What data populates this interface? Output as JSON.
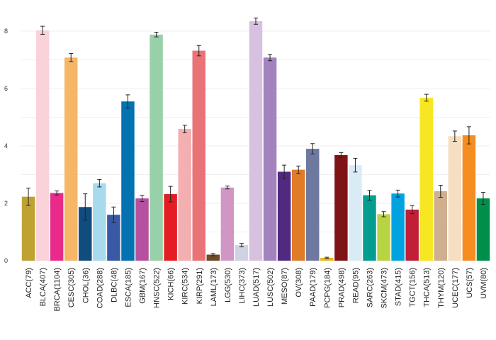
{
  "chart_data": {
    "type": "bar",
    "title": "",
    "xlabel": "",
    "ylabel": "",
    "ylim": [
      0,
      8.5
    ],
    "yticks": [
      0,
      2,
      4,
      6,
      8
    ],
    "grid": true,
    "legend": "none",
    "categories": [
      "ACC(79)",
      "BLCA(407)",
      "BRCA(1104)",
      "CESC(305)",
      "CHOL(36)",
      "COAD(288)",
      "DLBC(48)",
      "ESCA(185)",
      "GBM(167)",
      "HNSC(522)",
      "KICH(66)",
      "KIRC(534)",
      "KIRP(291)",
      "LAML(173)",
      "LGG(530)",
      "LIHC(373)",
      "LUAD(517)",
      "LUSC(502)",
      "MESO(87)",
      "OV(308)",
      "PAAD(179)",
      "PCPG(184)",
      "PRAD(498)",
      "READ(95)",
      "SARC(263)",
      "SKCM(473)",
      "STAD(415)",
      "TGCT(156)",
      "THCA(513)",
      "THYM(120)",
      "UCEC(177)",
      "UCS(57)",
      "UVM(80)"
    ],
    "values": [
      2.23,
      8.03,
      2.36,
      7.08,
      1.87,
      2.7,
      1.6,
      5.55,
      2.17,
      7.88,
      2.32,
      4.59,
      7.32,
      0.21,
      2.55,
      0.54,
      8.35,
      7.08,
      3.1,
      3.17,
      3.9,
      0.1,
      3.68,
      3.33,
      2.28,
      1.62,
      2.34,
      1.78,
      5.68,
      2.42,
      4.34,
      4.37,
      2.17
    ],
    "errors": [
      0.3,
      0.14,
      0.07,
      0.14,
      0.46,
      0.13,
      0.27,
      0.23,
      0.11,
      0.08,
      0.27,
      0.13,
      0.18,
      0.04,
      0.05,
      0.06,
      0.11,
      0.11,
      0.23,
      0.13,
      0.18,
      0.02,
      0.09,
      0.24,
      0.17,
      0.09,
      0.12,
      0.14,
      0.12,
      0.21,
      0.18,
      0.3,
      0.21
    ],
    "colors": [
      "#C0A232",
      "#F9D2DA",
      "#E82A8A",
      "#F6B567",
      "#104C7D",
      "#A8DAEE",
      "#3859A3",
      "#0272B1",
      "#B6519F",
      "#97D0A9",
      "#E41D25",
      "#F4AFB0",
      "#E97377",
      "#6F4928",
      "#D196C4",
      "#CED2E2",
      "#D8C1E0",
      "#A283BE",
      "#522981",
      "#E07B27",
      "#6D799F",
      "#E6B81A",
      "#7E1416",
      "#D9ECF5",
      "#059D90",
      "#B8D444",
      "#00A3E0",
      "#C11F38",
      "#F7E722",
      "#CFAF8D",
      "#F5DEC1",
      "#F68D21",
      "#008F4A"
    ]
  }
}
